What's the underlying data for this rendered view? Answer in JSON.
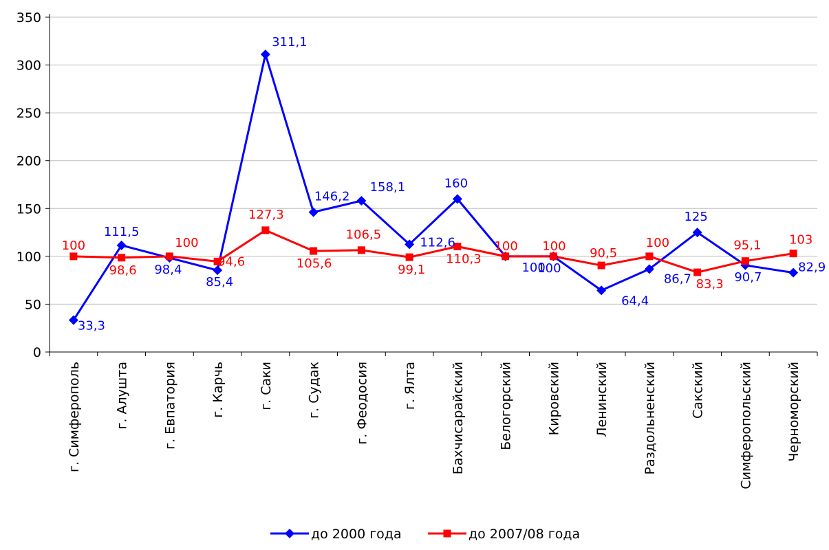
{
  "chart_data": {
    "type": "line",
    "categories": [
      "г. Симферополь",
      "г. Алушта",
      "г. Евпатория",
      "г. Карчь",
      "г. Саки",
      "г. Судак",
      "г. Феодосия",
      "г. Ялта",
      "Бахчисарайский",
      "Белогорский",
      "Кировский",
      "Ленинский",
      "Раздольненский",
      "Сакский",
      "Симферопольский",
      "Черноморский"
    ],
    "series": [
      {
        "name": "до 2000 года",
        "color": "#0000ff",
        "marker": "diamond",
        "values": [
          33.3,
          111.5,
          98.4,
          85.4,
          311.1,
          146.2,
          158.1,
          112.6,
          160,
          100,
          100,
          64.4,
          86.7,
          125,
          90.7,
          82.9
        ],
        "labels": [
          "33,3",
          "111,5",
          "98,4",
          "85,4",
          "311,1",
          "146,2",
          "158,1",
          "112,6",
          "160",
          "100",
          "100",
          "64,4",
          "86,7",
          "125",
          "90,7",
          "82,9"
        ]
      },
      {
        "name": "до 2007/08 года",
        "color": "#ff0000",
        "marker": "square",
        "values": [
          100,
          98.6,
          100,
          94.6,
          127.3,
          105.6,
          106.5,
          99.1,
          110.3,
          100,
          100,
          90.5,
          100,
          83.3,
          95.1,
          103
        ],
        "labels": [
          "100",
          "98,6",
          "100",
          "94,6",
          "127,3",
          "105,6",
          "106,5",
          "99,1",
          "110,3",
          "100",
          "100",
          "90,5",
          "100",
          "83,3",
          "95,1",
          "103"
        ]
      }
    ],
    "yticks": [
      0,
      50,
      100,
      150,
      200,
      250,
      300,
      350
    ],
    "ylim": [
      0,
      350
    ],
    "grid": true,
    "legend": "bottom"
  }
}
